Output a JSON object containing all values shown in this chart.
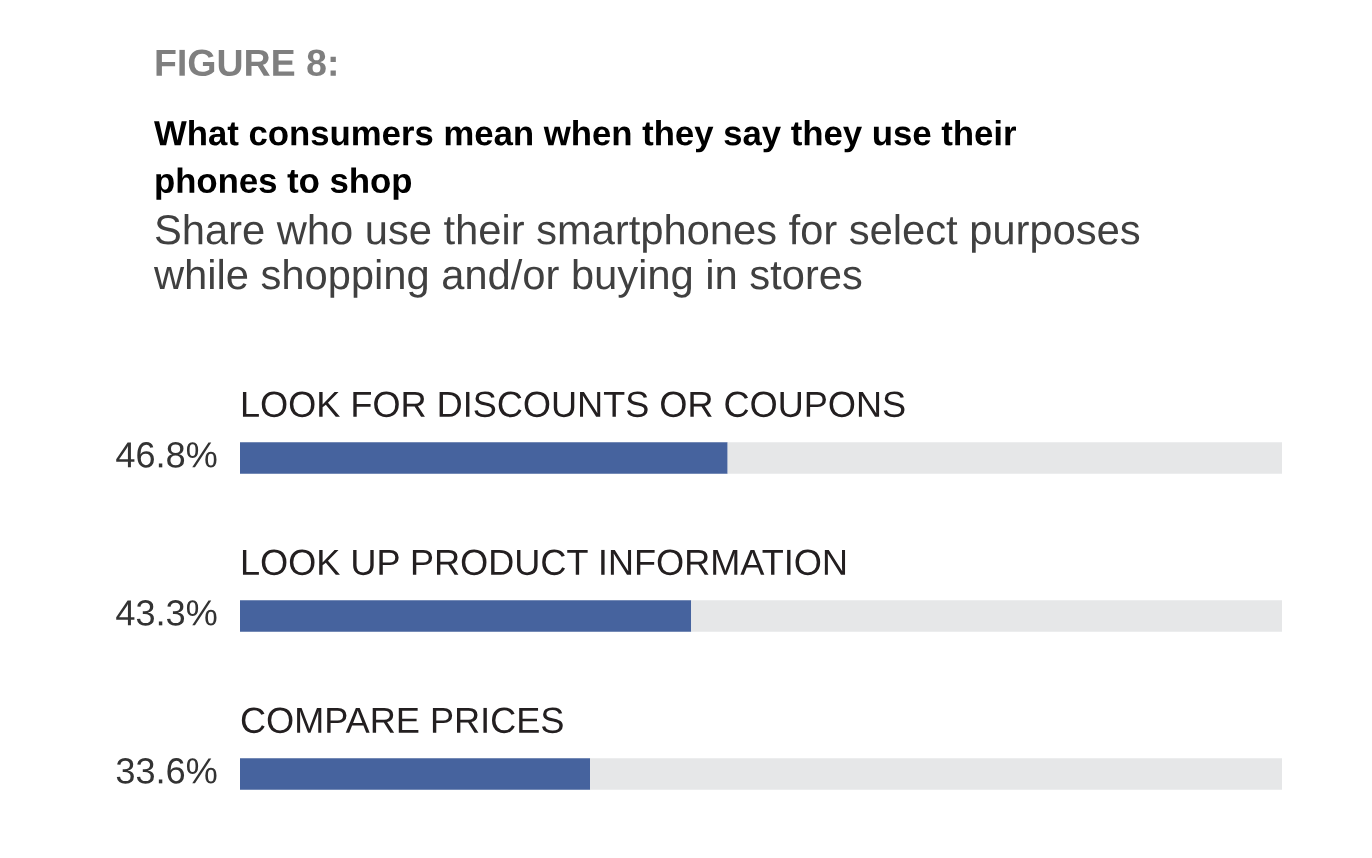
{
  "chart_data": {
    "type": "bar",
    "orientation": "horizontal",
    "stacked": true,
    "annotations": [
      "FIGURE 8:"
    ],
    "title": "What consumers mean when they say they use their\nphones to shop",
    "subtitle": "Share who use their smartphones for select purposes\nwhile shopping and/or buying in stores",
    "categories": [
      "LOOK FOR DISCOUNTS OR COUPONS",
      "LOOK UP PRODUCT INFORMATION",
      "COMPARE PRICES"
    ],
    "series": [
      {
        "color": "#46639e",
        "values": [
          46.8,
          43.3,
          33.6
        ],
        "value_labels": [
          "46.8%",
          "43.3%",
          "33.6%"
        ]
      },
      {
        "color": "#e6e7e8",
        "values": [
          53.2,
          56.7,
          66.4
        ]
      }
    ],
    "xlim": [
      0,
      100
    ],
    "tick_labels": false
  }
}
